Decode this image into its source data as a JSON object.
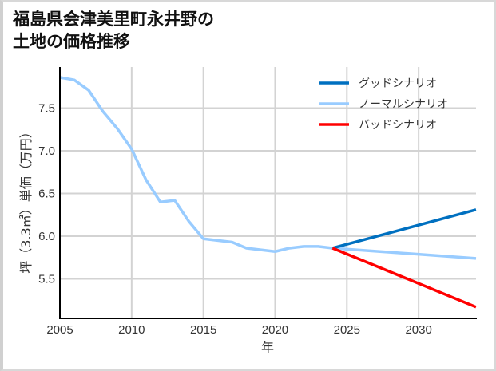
{
  "title_line1": "福島県会津美里町永井野の",
  "title_line2": "土地の価格推移",
  "chart_data": {
    "type": "line",
    "title": "福島県会津美里町永井野の土地の価格推移",
    "xlabel": "年",
    "ylabel": "坪（3.3㎡）単価（万円）",
    "xlim": [
      2005,
      2034
    ],
    "ylim": [
      5.1,
      7.9
    ],
    "grid": true,
    "legend_position": "upper right",
    "x_ticks": [
      2005,
      2010,
      2015,
      2020,
      2025,
      2030
    ],
    "y_ticks": [
      5.5,
      6.0,
      6.5,
      7.0,
      7.5
    ],
    "series": [
      {
        "name": "ノーマルシナリオ",
        "color": "#99ccff",
        "x": [
          2005,
          2006,
          2007,
          2008,
          2009,
          2010,
          2011,
          2012,
          2013,
          2014,
          2015,
          2016,
          2017,
          2018,
          2019,
          2020,
          2021,
          2022,
          2023,
          2024,
          2034
        ],
        "values": [
          7.86,
          7.83,
          7.71,
          7.46,
          7.26,
          7.02,
          6.66,
          6.4,
          6.42,
          6.17,
          5.97,
          5.95,
          5.93,
          5.86,
          5.84,
          5.82,
          5.86,
          5.88,
          5.88,
          5.86,
          5.74
        ]
      },
      {
        "name": "グッドシナリオ",
        "color": "#0070c0",
        "x": [
          2024,
          2034
        ],
        "values": [
          5.86,
          6.31
        ]
      },
      {
        "name": "バッドシナリオ",
        "color": "#ff0000",
        "x": [
          2024,
          2034
        ],
        "values": [
          5.86,
          5.17
        ]
      }
    ]
  }
}
